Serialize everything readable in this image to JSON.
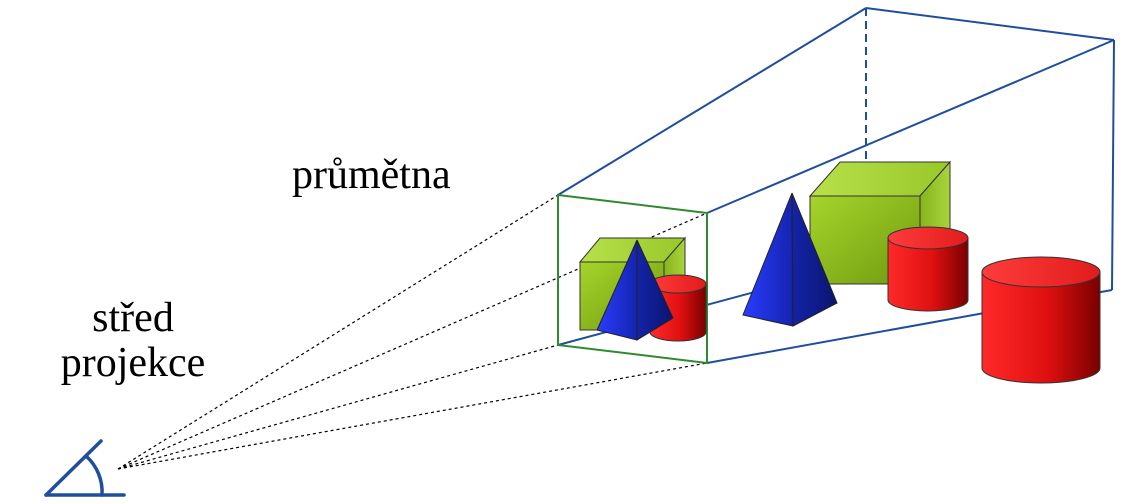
{
  "labels": {
    "projection_plane": "průmětna",
    "center_line1": "střed",
    "center_line2": "projekce"
  },
  "colors": {
    "frustum": "#1f4e9c",
    "plane": "#2f8a2f",
    "rays": "#000000",
    "cube": "#8fc31f",
    "pyramid": "#1c2bb5",
    "cylinder": "#e11a1a",
    "eye": "#1f4e9c"
  },
  "icons": {
    "viewer": "eye-angle-icon"
  }
}
